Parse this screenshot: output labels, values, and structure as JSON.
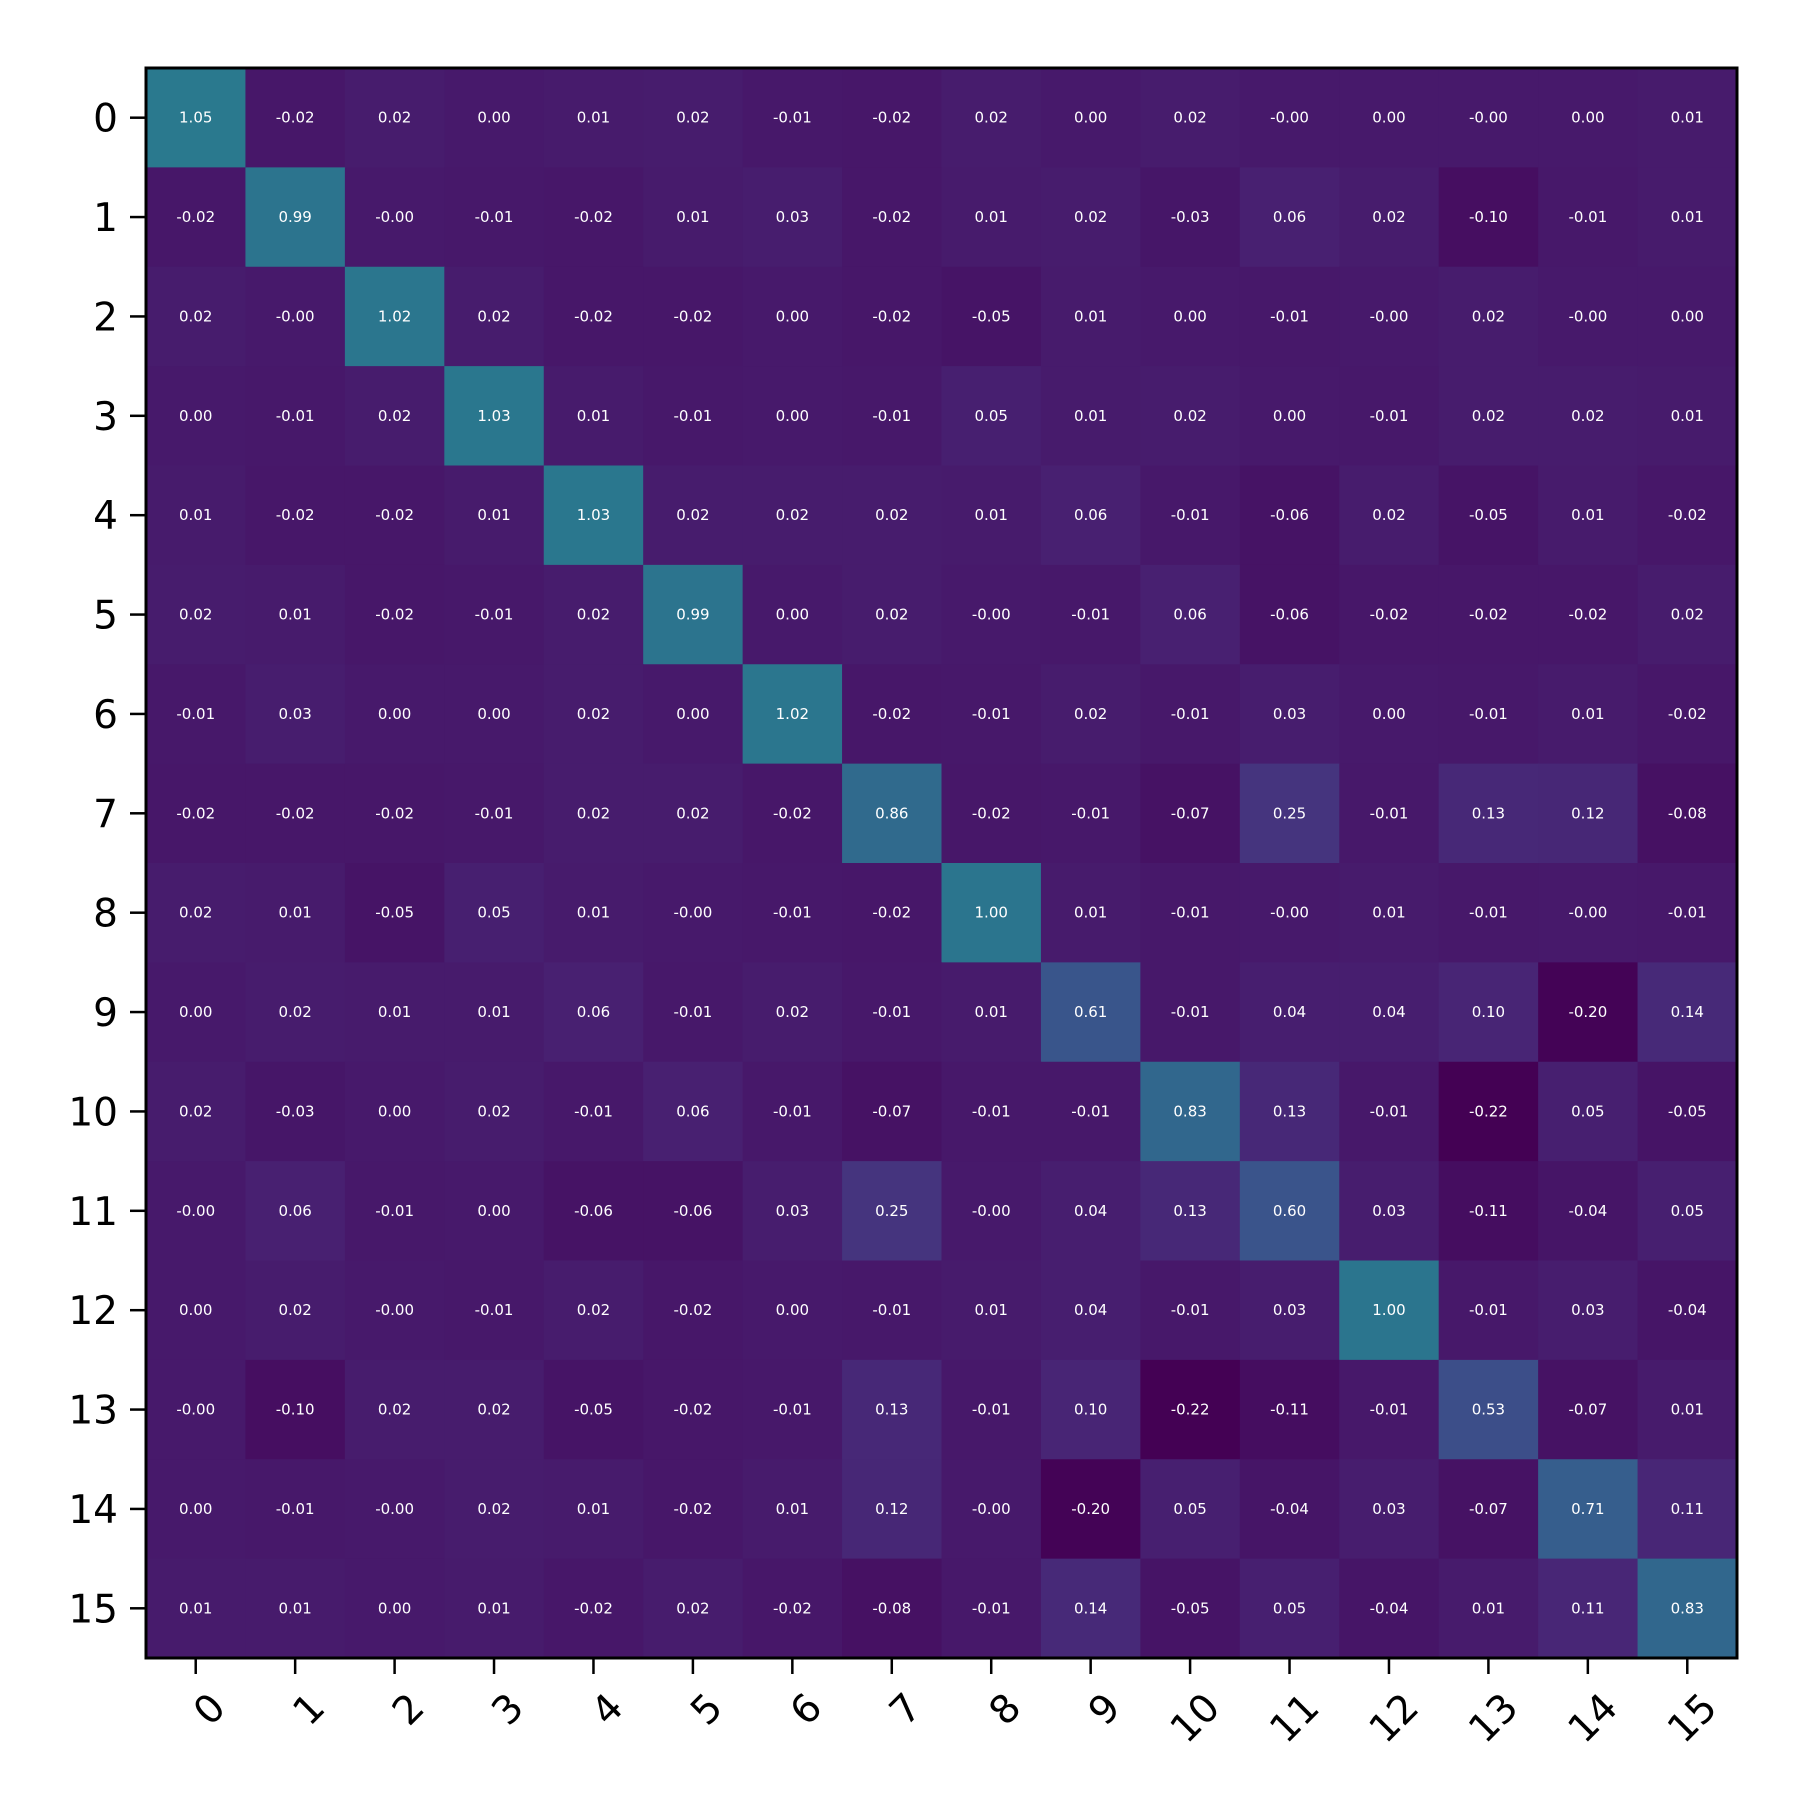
{
  "chart_data": {
    "type": "heatmap",
    "title": "",
    "xlabel": "",
    "ylabel": "",
    "x_categories": [
      "0",
      "1",
      "2",
      "3",
      "4",
      "5",
      "6",
      "7",
      "8",
      "9",
      "10",
      "11",
      "12",
      "13",
      "14",
      "15"
    ],
    "y_categories": [
      "0",
      "1",
      "2",
      "3",
      "4",
      "5",
      "6",
      "7",
      "8",
      "9",
      "10",
      "11",
      "12",
      "13",
      "14",
      "15"
    ],
    "x_tick_rotation_deg": 45,
    "colormap": "viridis",
    "color_range": [
      -0.22,
      2.3
    ],
    "grid": false,
    "values": [
      [
        "1.05",
        "-0.02",
        "0.02",
        "0.00",
        "0.01",
        "0.02",
        "-0.01",
        "-0.02",
        "0.02",
        "0.00",
        "0.02",
        "-0.00",
        "0.00",
        "-0.00",
        "0.00",
        "0.01"
      ],
      [
        "-0.02",
        "0.99",
        "-0.00",
        "-0.01",
        "-0.02",
        "0.01",
        "0.03",
        "-0.02",
        "0.01",
        "0.02",
        "-0.03",
        "0.06",
        "0.02",
        "-0.10",
        "-0.01",
        "0.01"
      ],
      [
        "0.02",
        "-0.00",
        "1.02",
        "0.02",
        "-0.02",
        "-0.02",
        "0.00",
        "-0.02",
        "-0.05",
        "0.01",
        "0.00",
        "-0.01",
        "-0.00",
        "0.02",
        "-0.00",
        "0.00"
      ],
      [
        "0.00",
        "-0.01",
        "0.02",
        "1.03",
        "0.01",
        "-0.01",
        "0.00",
        "-0.01",
        "0.05",
        "0.01",
        "0.02",
        "0.00",
        "-0.01",
        "0.02",
        "0.02",
        "0.01"
      ],
      [
        "0.01",
        "-0.02",
        "-0.02",
        "0.01",
        "1.03",
        "0.02",
        "0.02",
        "0.02",
        "0.01",
        "0.06",
        "-0.01",
        "-0.06",
        "0.02",
        "-0.05",
        "0.01",
        "-0.02"
      ],
      [
        "0.02",
        "0.01",
        "-0.02",
        "-0.01",
        "0.02",
        "0.99",
        "0.00",
        "0.02",
        "-0.00",
        "-0.01",
        "0.06",
        "-0.06",
        "-0.02",
        "-0.02",
        "-0.02",
        "0.02"
      ],
      [
        "-0.01",
        "0.03",
        "0.00",
        "0.00",
        "0.02",
        "0.00",
        "1.02",
        "-0.02",
        "-0.01",
        "0.02",
        "-0.01",
        "0.03",
        "0.00",
        "-0.01",
        "0.01",
        "-0.02"
      ],
      [
        "-0.02",
        "-0.02",
        "-0.02",
        "-0.01",
        "0.02",
        "0.02",
        "-0.02",
        "0.86",
        "-0.02",
        "-0.01",
        "-0.07",
        "0.25",
        "-0.01",
        "0.13",
        "0.12",
        "-0.08"
      ],
      [
        "0.02",
        "0.01",
        "-0.05",
        "0.05",
        "0.01",
        "-0.00",
        "-0.01",
        "-0.02",
        "1.00",
        "0.01",
        "-0.01",
        "-0.00",
        "0.01",
        "-0.01",
        "-0.00",
        "-0.01"
      ],
      [
        "0.00",
        "0.02",
        "0.01",
        "0.01",
        "0.06",
        "-0.01",
        "0.02",
        "-0.01",
        "0.01",
        "0.61",
        "-0.01",
        "0.04",
        "0.04",
        "0.10",
        "-0.20",
        "0.14"
      ],
      [
        "0.02",
        "-0.03",
        "0.00",
        "0.02",
        "-0.01",
        "0.06",
        "-0.01",
        "-0.07",
        "-0.01",
        "-0.01",
        "0.83",
        "0.13",
        "-0.01",
        "-0.22",
        "0.05",
        "-0.05"
      ],
      [
        "-0.00",
        "0.06",
        "-0.01",
        "0.00",
        "-0.06",
        "-0.06",
        "0.03",
        "0.25",
        "-0.00",
        "0.04",
        "0.13",
        "0.60",
        "0.03",
        "-0.11",
        "-0.04",
        "0.05"
      ],
      [
        "0.00",
        "0.02",
        "-0.00",
        "-0.01",
        "0.02",
        "-0.02",
        "0.00",
        "-0.01",
        "0.01",
        "0.04",
        "-0.01",
        "0.03",
        "1.00",
        "-0.01",
        "0.03",
        "-0.04"
      ],
      [
        "-0.00",
        "-0.10",
        "0.02",
        "0.02",
        "-0.05",
        "-0.02",
        "-0.01",
        "0.13",
        "-0.01",
        "0.10",
        "-0.22",
        "-0.11",
        "-0.01",
        "0.53",
        "-0.07",
        "0.01"
      ],
      [
        "0.00",
        "-0.01",
        "-0.00",
        "0.02",
        "0.01",
        "-0.02",
        "0.01",
        "0.12",
        "-0.00",
        "-0.20",
        "0.05",
        "-0.04",
        "0.03",
        "-0.07",
        "0.71",
        "0.11"
      ],
      [
        "0.01",
        "0.01",
        "0.00",
        "0.01",
        "-0.02",
        "0.02",
        "-0.02",
        "-0.08",
        "-0.01",
        "0.14",
        "-0.05",
        "0.05",
        "-0.04",
        "0.01",
        "0.11",
        "0.83"
      ]
    ]
  }
}
